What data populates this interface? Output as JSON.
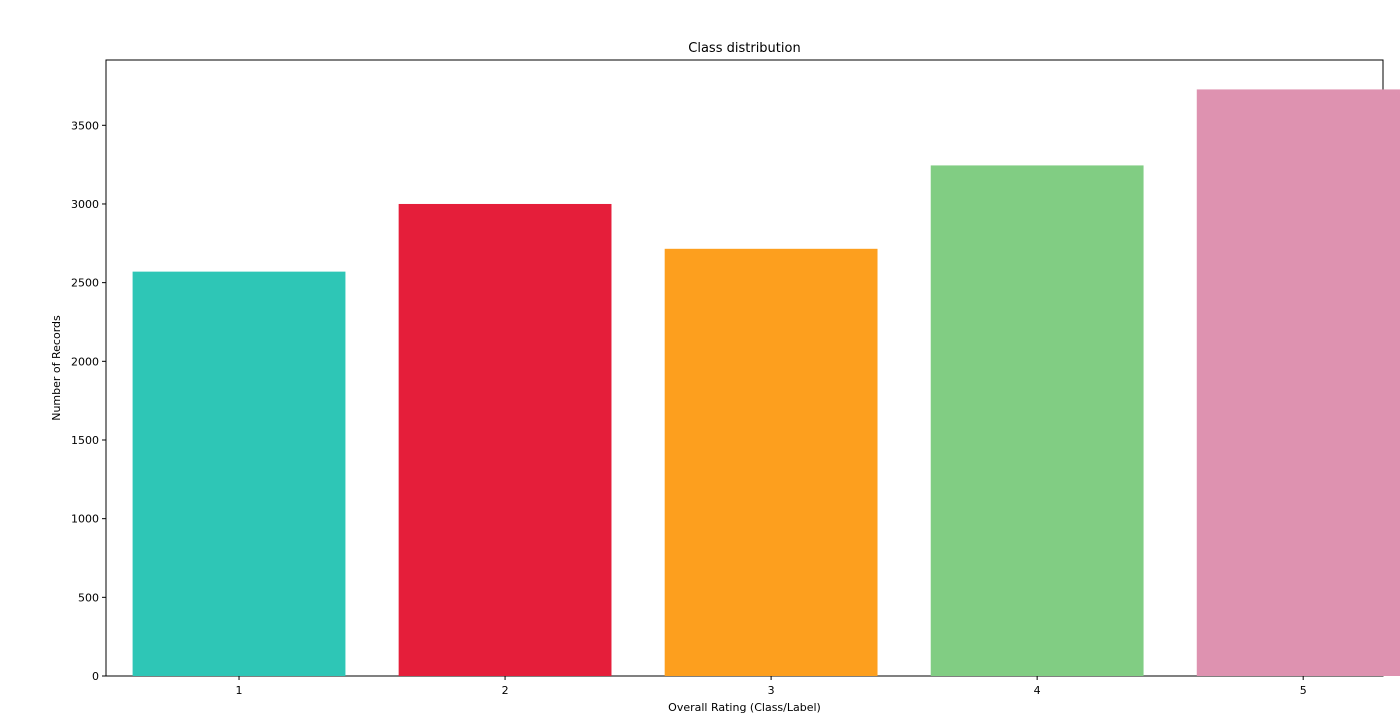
{
  "chart_data": {
    "type": "bar",
    "title": "Class distribution",
    "xlabel": "Overall Rating (Class/Label)",
    "ylabel": "Number of Records",
    "categories": [
      "1",
      "2",
      "3",
      "4",
      "5"
    ],
    "values": [
      2570,
      3000,
      2715,
      3245,
      3728
    ],
    "colors": [
      "#2ec6b6",
      "#e51e3a",
      "#fd9f1e",
      "#81cd83",
      "#de92b0"
    ],
    "ylim": [
      0,
      3915
    ],
    "yticks": [
      0,
      500,
      1000,
      1500,
      2000,
      2500,
      3000,
      3500
    ],
    "grid": false,
    "legend": "none"
  }
}
